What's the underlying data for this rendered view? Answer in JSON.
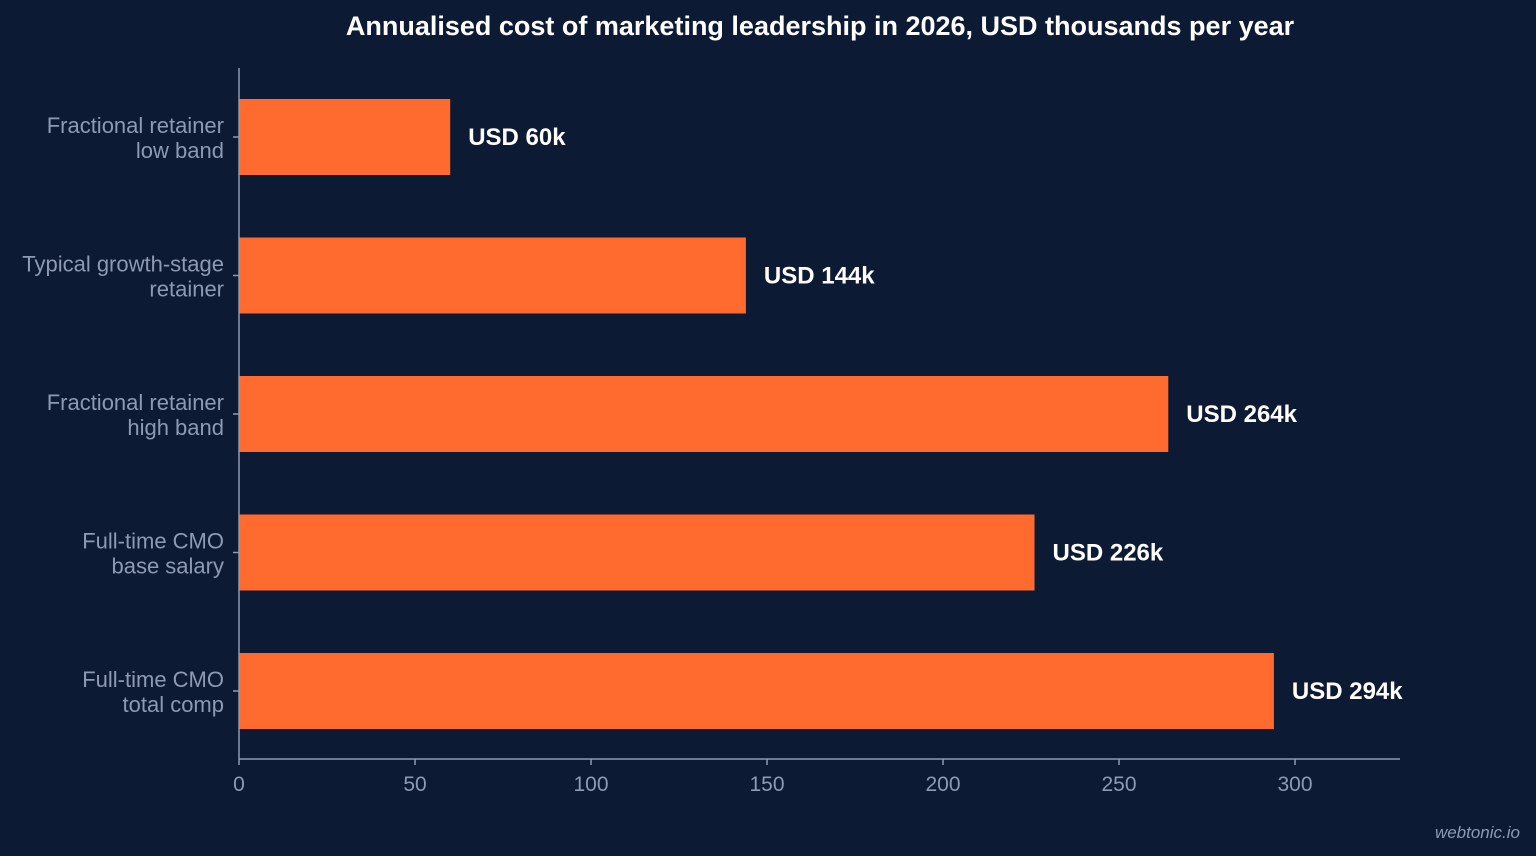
{
  "chart_data": {
    "type": "bar",
    "orientation": "horizontal",
    "title": "Annualised cost of marketing leadership in 2026, USD thousands per year",
    "categories": [
      [
        "Fractional retainer",
        "low band"
      ],
      [
        "Typical growth-stage",
        "retainer"
      ],
      [
        "Fractional retainer",
        "high band"
      ],
      [
        "Full-time CMO",
        "base salary"
      ],
      [
        "Full-time CMO",
        "total comp"
      ]
    ],
    "values": [
      60,
      144,
      264,
      226,
      294
    ],
    "data_labels": [
      "USD 60k",
      "USD 144k",
      "USD 264k",
      "USD 226k",
      "USD 294k"
    ],
    "xlim": [
      0,
      330
    ],
    "xticks": [
      0,
      50,
      100,
      150,
      200,
      250,
      300
    ],
    "xlabel": "",
    "ylabel": "",
    "grid": false,
    "legend": "none",
    "bar_color": "#ff6b2f",
    "background_color": "#0c1a33"
  },
  "watermark": "webtonic.io"
}
